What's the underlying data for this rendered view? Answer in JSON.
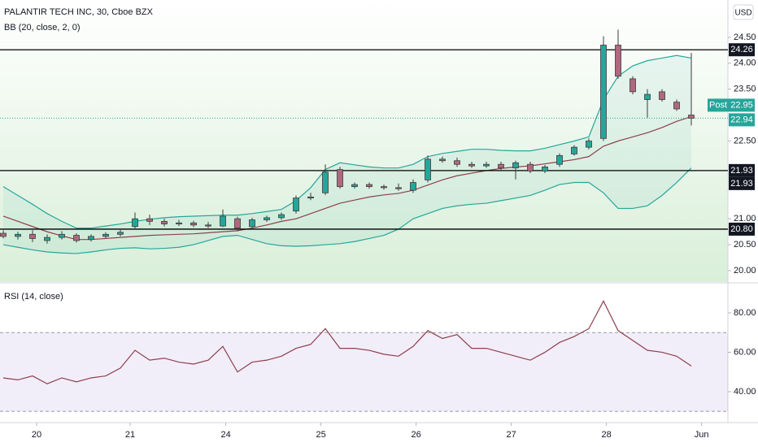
{
  "chart_data": [
    {
      "type": "candlestick",
      "title": "PALANTIR TECH INC, 30, Cboe BZX",
      "subtitle": "BB (20, close, 2, 0)",
      "currency": "USD",
      "up_color": "#26a69a",
      "down_color": "#b0687f",
      "band_color": "#26a69a",
      "basis_color": "#8e3f4c",
      "open": [
        20.72,
        20.66,
        20.7,
        20.58,
        20.64,
        20.68,
        20.6,
        20.66,
        20.7,
        20.85,
        21.0,
        20.95,
        20.9,
        20.92,
        20.88,
        20.86,
        21.0,
        20.85,
        20.98,
        21.02,
        21.15,
        21.4,
        21.5,
        21.95,
        21.62,
        21.66,
        21.62,
        21.6,
        21.55,
        21.75,
        22.15,
        22.12,
        22.05,
        22.02,
        22.05,
        21.98,
        22.05,
        21.92,
        22.05,
        22.25,
        22.38,
        22.55,
        24.35,
        23.7,
        23.3,
        23.45,
        23.25,
        23.0
      ],
      "high": [
        20.78,
        20.75,
        20.78,
        20.7,
        20.76,
        20.72,
        20.7,
        20.74,
        20.8,
        21.12,
        21.08,
        21.0,
        20.98,
        20.96,
        20.94,
        21.18,
        21.04,
        21.02,
        21.06,
        21.12,
        21.45,
        21.5,
        22.05,
        22.0,
        21.7,
        21.7,
        21.66,
        21.68,
        21.76,
        22.22,
        22.2,
        22.18,
        22.1,
        22.1,
        22.1,
        22.12,
        22.1,
        22.04,
        22.26,
        22.42,
        22.55,
        24.52,
        24.65,
        23.75,
        23.5,
        23.5,
        23.3,
        24.2
      ],
      "low": [
        20.62,
        20.6,
        20.55,
        20.52,
        20.6,
        20.54,
        20.56,
        20.62,
        20.66,
        20.8,
        20.88,
        20.85,
        20.86,
        20.84,
        20.82,
        20.84,
        20.76,
        20.82,
        20.94,
        20.98,
        21.1,
        21.36,
        21.46,
        21.58,
        21.58,
        21.58,
        21.56,
        21.54,
        21.5,
        21.7,
        22.08,
        22.0,
        21.98,
        21.98,
        21.94,
        21.76,
        21.88,
        21.88,
        22.0,
        22.22,
        22.34,
        22.5,
        23.7,
        23.4,
        22.95,
        23.26,
        23.08,
        22.8
      ],
      "close": [
        20.66,
        20.7,
        20.62,
        20.64,
        20.7,
        20.58,
        20.66,
        20.7,
        20.74,
        21.0,
        20.95,
        20.9,
        20.92,
        20.88,
        20.86,
        21.05,
        20.82,
        20.98,
        21.02,
        21.08,
        21.4,
        21.42,
        21.9,
        21.62,
        21.66,
        21.62,
        21.6,
        21.58,
        21.7,
        22.15,
        22.12,
        22.05,
        22.02,
        22.05,
        21.98,
        22.08,
        21.92,
        22.0,
        22.22,
        22.38,
        22.5,
        24.35,
        23.75,
        23.45,
        23.4,
        23.3,
        23.12,
        22.94
      ],
      "bb_upper": [
        21.62,
        21.45,
        21.28,
        21.1,
        20.95,
        20.82,
        20.82,
        20.86,
        20.9,
        20.95,
        20.99,
        21.02,
        21.04,
        21.05,
        21.06,
        21.07,
        21.07,
        21.1,
        21.14,
        21.18,
        21.35,
        21.6,
        21.95,
        22.08,
        22.04,
        22.0,
        21.98,
        21.98,
        22.05,
        22.2,
        22.26,
        22.3,
        22.34,
        22.34,
        22.32,
        22.31,
        22.31,
        22.36,
        22.43,
        22.5,
        22.58,
        23.3,
        23.75,
        23.95,
        24.05,
        24.1,
        24.15,
        24.1
      ],
      "bb_middle": [
        21.05,
        20.95,
        20.85,
        20.75,
        20.67,
        20.6,
        20.6,
        20.62,
        20.64,
        20.66,
        20.68,
        20.69,
        20.7,
        20.71,
        20.73,
        20.75,
        20.77,
        20.82,
        20.88,
        20.95,
        21.0,
        21.1,
        21.2,
        21.3,
        21.36,
        21.42,
        21.46,
        21.49,
        21.55,
        21.65,
        21.75,
        21.83,
        21.88,
        21.93,
        21.97,
        22.0,
        22.02,
        22.06,
        22.1,
        22.14,
        22.2,
        22.4,
        22.5,
        22.58,
        22.66,
        22.76,
        22.88,
        22.97
      ],
      "bb_lower": [
        20.5,
        20.45,
        20.4,
        20.36,
        20.34,
        20.33,
        20.36,
        20.4,
        20.43,
        20.44,
        20.42,
        20.43,
        20.45,
        20.5,
        20.58,
        20.66,
        20.68,
        20.6,
        20.52,
        20.48,
        20.47,
        20.48,
        20.5,
        20.52,
        20.56,
        20.62,
        20.68,
        20.8,
        21.0,
        21.1,
        21.2,
        21.25,
        21.28,
        21.3,
        21.35,
        21.4,
        21.45,
        21.55,
        21.66,
        21.7,
        21.7,
        21.5,
        21.2,
        21.2,
        21.25,
        21.45,
        21.7,
        21.98
      ],
      "ylim": [
        19.78,
        25.22
      ],
      "yticks": [
        {
          "value": 20,
          "label": "20.00"
        },
        {
          "value": 20.5,
          "label": "20.50"
        },
        {
          "value": 21,
          "label": "21.00"
        },
        {
          "value": 22.5,
          "label": "22.50"
        },
        {
          "value": 23.5,
          "label": "23.50"
        },
        {
          "value": 24,
          "label": "24.00"
        },
        {
          "value": 24.5,
          "label": "24.50"
        }
      ],
      "xticks": [
        {
          "value": 2.28,
          "label": "20"
        },
        {
          "value": 8.67,
          "label": "21"
        },
        {
          "value": 15.2,
          "label": "24"
        },
        {
          "value": 21.7,
          "label": "25"
        },
        {
          "value": 28.2,
          "label": "26"
        },
        {
          "value": 34.7,
          "label": "27"
        },
        {
          "value": 41.2,
          "label": "28"
        },
        {
          "value": 47.7,
          "label": "Jun"
        }
      ],
      "price_lines": [
        {
          "value": 24.26,
          "label": "24.26"
        },
        {
          "value": 21.93,
          "label": "21.93"
        },
        {
          "value": 20.8,
          "label": "20.80"
        }
      ],
      "extra_label": "21.93",
      "post": {
        "label": "Post",
        "value": 22.95
      },
      "last": 22.94
    },
    {
      "type": "line",
      "title": "RSI (14, close)",
      "color": "#8e3f4c",
      "values": [
        47,
        46,
        48,
        44,
        47,
        45,
        47,
        48,
        52,
        61,
        56,
        57,
        55,
        54,
        56,
        63,
        50,
        55,
        56,
        58,
        62,
        64,
        72,
        62,
        62,
        61,
        59,
        58,
        63,
        71,
        67,
        69,
        62,
        62,
        60,
        58,
        56,
        60,
        65,
        68,
        72,
        86,
        71,
        66,
        61,
        60,
        58,
        53
      ],
      "ylim": [
        24.3,
        93.6
      ],
      "yticks": [
        {
          "value": 40,
          "label": "40.00"
        },
        {
          "value": 60,
          "label": "60.00"
        },
        {
          "value": 80,
          "label": "80.00"
        }
      ],
      "band": [
        30,
        70
      ]
    }
  ]
}
